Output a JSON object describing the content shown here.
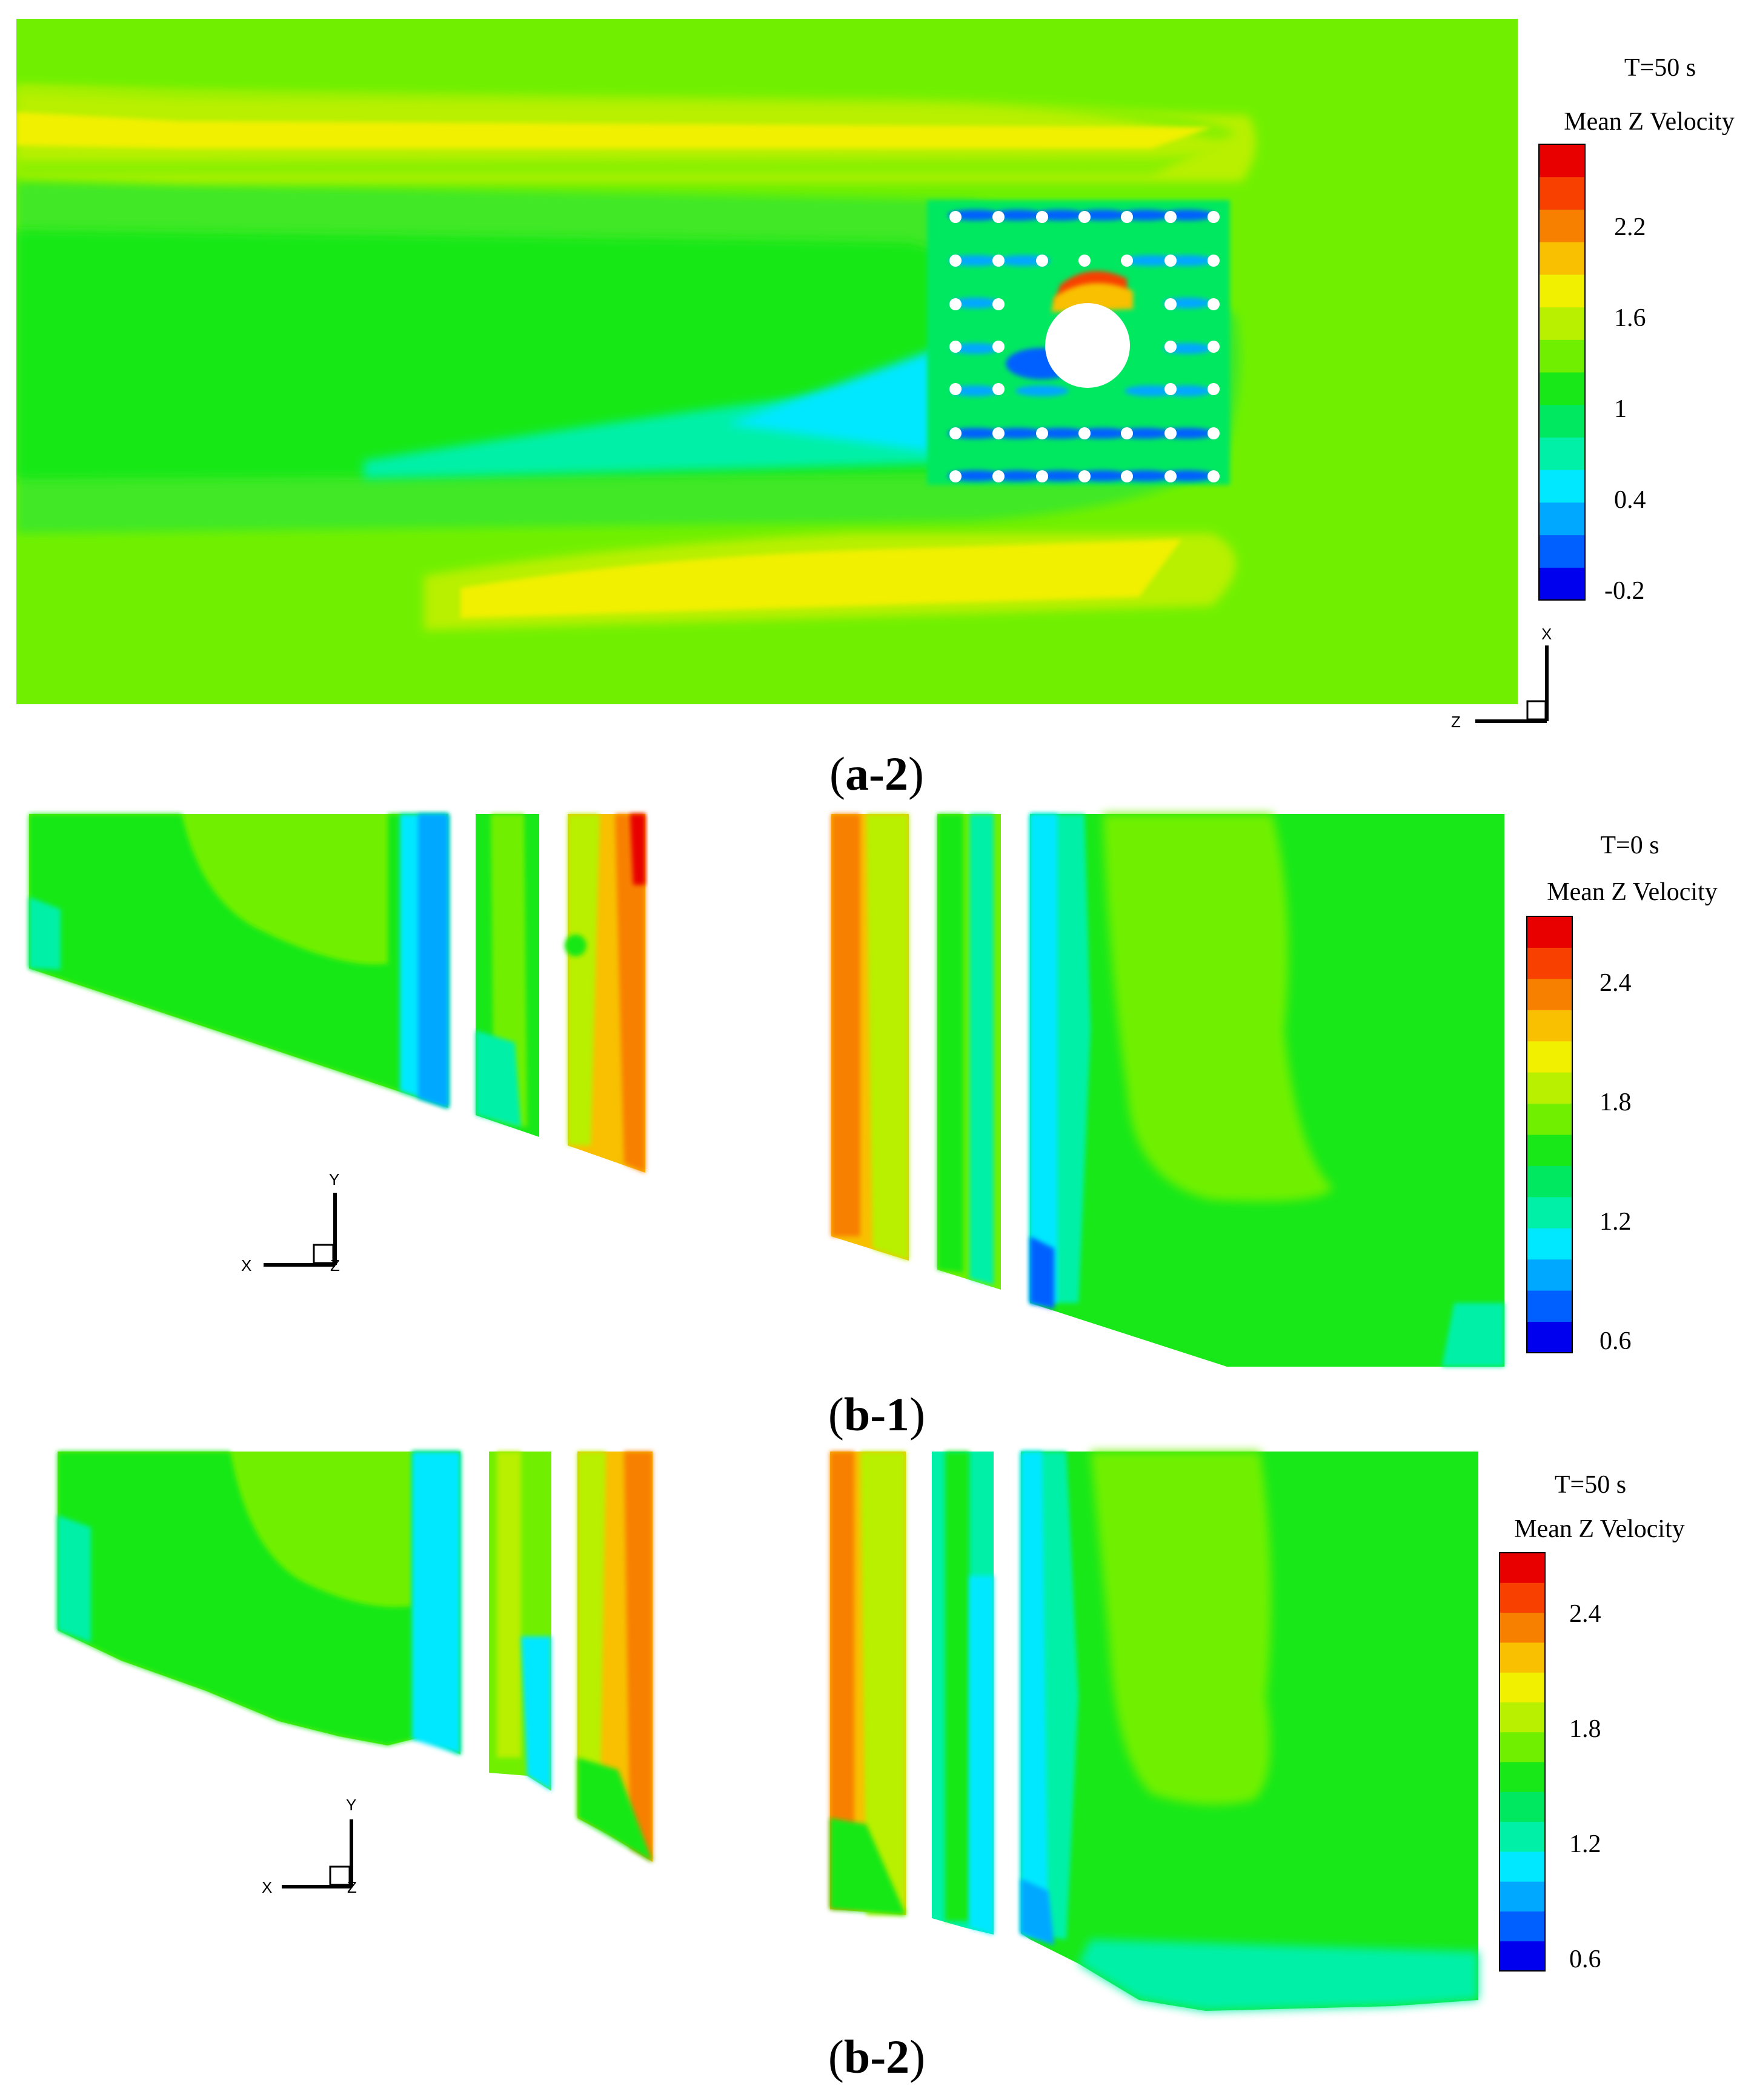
{
  "panels": [
    {
      "id": "a-2",
      "time_label": "T=50 s",
      "legend_title": "Mean Z Velocity",
      "legend_ticks": [
        "2.2",
        "1.6",
        "1",
        "0.4",
        "-0.2"
      ],
      "axis_labels": {
        "vertical": "X",
        "horizontal": "Z"
      },
      "caption_letter": "a-2"
    },
    {
      "id": "b-1",
      "time_label": "T=0 s",
      "legend_title": "Mean Z Velocity",
      "legend_ticks": [
        "2.4",
        "1.8",
        "1.2",
        "0.6"
      ],
      "axis_labels": {
        "vertical": "Y",
        "horizontal": "X",
        "corner": "Z"
      },
      "caption_letter": "b-1"
    },
    {
      "id": "b-2",
      "time_label": "T=50 s",
      "legend_title": "Mean Z Velocity",
      "legend_ticks": [
        "2.4",
        "1.8",
        "1.2",
        "0.6"
      ],
      "axis_labels": {
        "vertical": "Y",
        "horizontal": "X",
        "corner": "Z"
      },
      "caption_letter": "b-2"
    }
  ],
  "colormap": [
    "#0000ee",
    "#0060ff",
    "#00a8ff",
    "#00e8ff",
    "#00f0a8",
    "#00e860",
    "#18e818",
    "#70f000",
    "#b8f000",
    "#f0f000",
    "#f8c000",
    "#f88000",
    "#f84000",
    "#e80000"
  ]
}
